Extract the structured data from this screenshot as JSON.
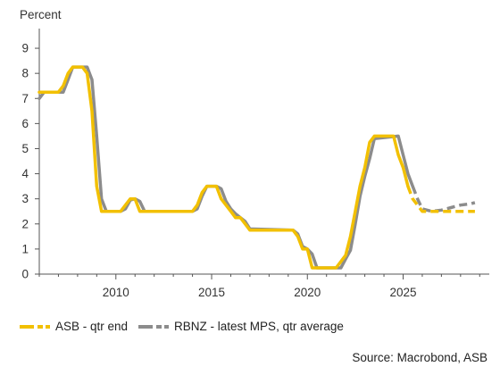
{
  "chart_data": {
    "type": "line",
    "ylabel": "Percent",
    "x_ticks": [
      2010,
      2015,
      2020,
      2025
    ],
    "y_ticks": [
      0,
      1,
      2,
      3,
      4,
      5,
      6,
      7,
      8,
      9
    ],
    "xlim": [
      2006.0,
      2029.5
    ],
    "ylim": [
      0,
      9.5
    ],
    "legend_position": "bottom-left",
    "grid": false,
    "series": [
      {
        "name": "ASB - qtr end",
        "color": "#F2C000",
        "actual": [
          [
            2006.0,
            7.25
          ],
          [
            2007.0,
            7.25
          ],
          [
            2007.25,
            7.5
          ],
          [
            2007.5,
            8.0
          ],
          [
            2007.75,
            8.25
          ],
          [
            2008.25,
            8.25
          ],
          [
            2008.5,
            8.0
          ],
          [
            2008.75,
            6.5
          ],
          [
            2009.0,
            3.5
          ],
          [
            2009.25,
            2.5
          ],
          [
            2010.25,
            2.5
          ],
          [
            2010.5,
            2.75
          ],
          [
            2010.75,
            3.0
          ],
          [
            2011.0,
            3.0
          ],
          [
            2011.25,
            2.5
          ],
          [
            2014.0,
            2.5
          ],
          [
            2014.25,
            2.75
          ],
          [
            2014.5,
            3.25
          ],
          [
            2014.75,
            3.5
          ],
          [
            2015.25,
            3.5
          ],
          [
            2015.5,
            3.0
          ],
          [
            2015.75,
            2.75
          ],
          [
            2016.0,
            2.5
          ],
          [
            2016.25,
            2.25
          ],
          [
            2016.5,
            2.25
          ],
          [
            2016.75,
            2.0
          ],
          [
            2017.0,
            1.75
          ],
          [
            2019.25,
            1.75
          ],
          [
            2019.5,
            1.5
          ],
          [
            2019.75,
            1.0
          ],
          [
            2020.0,
            1.0
          ],
          [
            2020.25,
            0.25
          ],
          [
            2021.5,
            0.25
          ],
          [
            2021.75,
            0.5
          ],
          [
            2022.0,
            0.75
          ],
          [
            2022.25,
            1.5
          ],
          [
            2022.5,
            2.5
          ],
          [
            2022.75,
            3.5
          ],
          [
            2023.0,
            4.25
          ],
          [
            2023.25,
            5.25
          ],
          [
            2023.5,
            5.5
          ],
          [
            2024.5,
            5.5
          ],
          [
            2024.75,
            4.75
          ],
          [
            2025.0,
            4.25
          ],
          [
            2025.25,
            3.5
          ]
        ],
        "forecast": [
          [
            2025.25,
            3.5
          ],
          [
            2025.5,
            3.0
          ],
          [
            2025.75,
            2.75
          ],
          [
            2026.0,
            2.5
          ],
          [
            2026.5,
            2.5
          ],
          [
            2027.0,
            2.5
          ],
          [
            2027.5,
            2.5
          ],
          [
            2028.0,
            2.5
          ],
          [
            2028.5,
            2.5
          ],
          [
            2028.75,
            2.5
          ]
        ]
      },
      {
        "name": "RBNZ - latest MPS, qtr average",
        "color": "#8C8C8C",
        "actual": [
          [
            2006.0,
            7.0
          ],
          [
            2006.25,
            7.25
          ],
          [
            2007.0,
            7.25
          ],
          [
            2007.25,
            7.25
          ],
          [
            2007.5,
            7.75
          ],
          [
            2007.75,
            8.25
          ],
          [
            2008.25,
            8.25
          ],
          [
            2008.5,
            8.25
          ],
          [
            2008.75,
            7.75
          ],
          [
            2009.0,
            5.5
          ],
          [
            2009.25,
            3.0
          ],
          [
            2009.5,
            2.5
          ],
          [
            2010.25,
            2.5
          ],
          [
            2010.5,
            2.6
          ],
          [
            2010.75,
            2.95
          ],
          [
            2011.0,
            3.0
          ],
          [
            2011.25,
            2.9
          ],
          [
            2011.5,
            2.5
          ],
          [
            2014.0,
            2.5
          ],
          [
            2014.25,
            2.6
          ],
          [
            2014.5,
            3.1
          ],
          [
            2014.75,
            3.5
          ],
          [
            2015.25,
            3.5
          ],
          [
            2015.5,
            3.4
          ],
          [
            2015.75,
            2.9
          ],
          [
            2016.0,
            2.6
          ],
          [
            2016.25,
            2.4
          ],
          [
            2016.5,
            2.25
          ],
          [
            2016.75,
            2.1
          ],
          [
            2017.0,
            1.8
          ],
          [
            2019.25,
            1.75
          ],
          [
            2019.5,
            1.6
          ],
          [
            2019.75,
            1.1
          ],
          [
            2020.0,
            1.0
          ],
          [
            2020.25,
            0.8
          ],
          [
            2020.5,
            0.25
          ],
          [
            2021.75,
            0.25
          ],
          [
            2022.0,
            0.6
          ],
          [
            2022.25,
            0.95
          ],
          [
            2022.5,
            2.0
          ],
          [
            2022.75,
            3.1
          ],
          [
            2023.0,
            3.9
          ],
          [
            2023.25,
            4.6
          ],
          [
            2023.5,
            5.4
          ],
          [
            2024.75,
            5.5
          ],
          [
            2025.0,
            4.75
          ],
          [
            2025.25,
            4.0
          ],
          [
            2025.5,
            3.5
          ]
        ],
        "forecast": [
          [
            2025.5,
            3.5
          ],
          [
            2025.75,
            3.0
          ],
          [
            2026.0,
            2.6
          ],
          [
            2026.5,
            2.5
          ],
          [
            2027.0,
            2.55
          ],
          [
            2027.5,
            2.65
          ],
          [
            2028.0,
            2.75
          ],
          [
            2028.5,
            2.8
          ],
          [
            2028.75,
            2.85
          ]
        ]
      }
    ]
  },
  "legend": {
    "items": [
      {
        "label": "ASB - qtr end",
        "color": "#F2C000"
      },
      {
        "label": "RBNZ - latest MPS, qtr average",
        "color": "#8C8C8C"
      }
    ]
  },
  "source": "Source: Macrobond, ASB"
}
